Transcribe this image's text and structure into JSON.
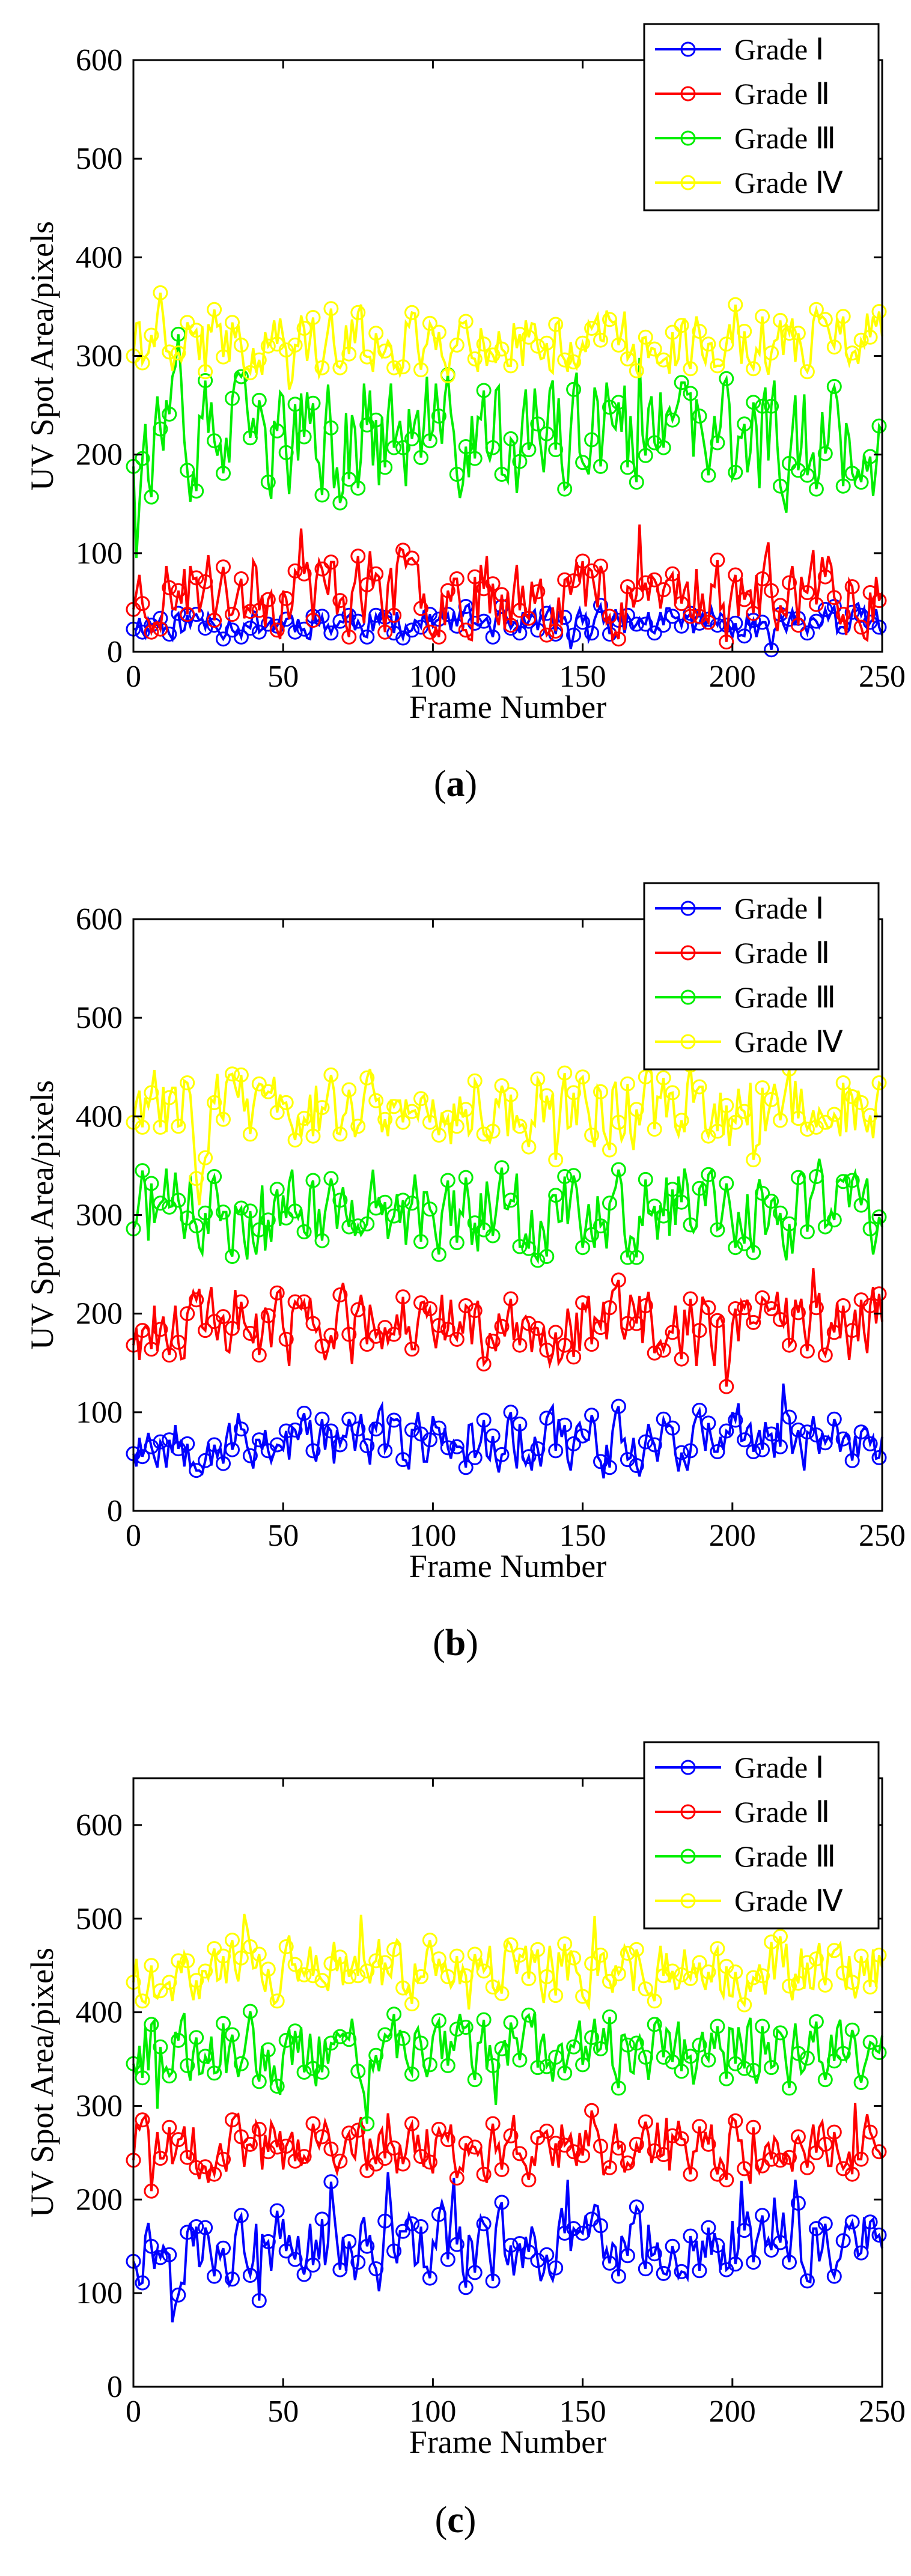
{
  "chart_data": [
    {
      "type": "line",
      "panel": "a",
      "caption_letter": "a",
      "xlabel": "Frame Number",
      "ylabel": "UV Spot Area/pixels",
      "xlim": [
        0,
        250
      ],
      "ylim": [
        0,
        600
      ],
      "xticks": [
        0,
        50,
        100,
        150,
        200,
        250
      ],
      "yticks": [
        0,
        100,
        200,
        300,
        400,
        500,
        600
      ],
      "legend_position": "top-right",
      "series": [
        {
          "name": "Grade Ⅰ",
          "color": "#0000ff",
          "seed": 11,
          "base": 30,
          "spread": 14,
          "min": 0,
          "max": 60
        },
        {
          "name": "Grade Ⅱ",
          "color": "#ff0000",
          "seed": 23,
          "base": 62,
          "spread": 38,
          "min": 10,
          "max": 180
        },
        {
          "name": "Grade Ⅲ",
          "color": "#00ee00",
          "seed": 37,
          "base": 215,
          "spread": 55,
          "min": 95,
          "max": 340
        },
        {
          "name": "Grade Ⅳ",
          "color": "#ffff00",
          "seed": 41,
          "base": 315,
          "spread": 30,
          "min": 245,
          "max": 405
        }
      ]
    },
    {
      "type": "line",
      "panel": "b",
      "caption_letter": "b",
      "xlabel": "Frame Number",
      "ylabel": "UV Spot Area/pixels",
      "xlim": [
        0,
        250
      ],
      "ylim": [
        0,
        600
      ],
      "xticks": [
        0,
        50,
        100,
        150,
        200,
        250
      ],
      "yticks": [
        0,
        100,
        200,
        300,
        400,
        500,
        600
      ],
      "legend_position": "top-right",
      "series": [
        {
          "name": "Grade Ⅰ",
          "color": "#0000ff",
          "seed": 53,
          "base": 72,
          "spread": 28,
          "min": 10,
          "max": 140
        },
        {
          "name": "Grade Ⅱ",
          "color": "#ff0000",
          "seed": 61,
          "base": 185,
          "spread": 35,
          "min": 85,
          "max": 270
        },
        {
          "name": "Grade Ⅲ",
          "color": "#00ee00",
          "seed": 71,
          "base": 305,
          "spread": 40,
          "min": 180,
          "max": 410
        },
        {
          "name": "Grade Ⅳ",
          "color": "#ffff00",
          "seed": 83,
          "base": 410,
          "spread": 35,
          "min": 310,
          "max": 500
        }
      ]
    },
    {
      "type": "line",
      "panel": "c",
      "caption_letter": "c",
      "xlabel": "Frame Number",
      "ylabel": "UV Spot Area/pixels",
      "xlim": [
        0,
        250
      ],
      "ylim": [
        0,
        650
      ],
      "xticks": [
        0,
        50,
        100,
        150,
        200,
        250
      ],
      "yticks": [
        0,
        100,
        200,
        300,
        400,
        500,
        600
      ],
      "legend_position": "top-right",
      "series": [
        {
          "name": "Grade Ⅰ",
          "color": "#0000ff",
          "seed": 97,
          "base": 150,
          "spread": 35,
          "min": 55,
          "max": 240
        },
        {
          "name": "Grade Ⅱ",
          "color": "#ff0000",
          "seed": 101,
          "base": 255,
          "spread": 30,
          "min": 160,
          "max": 330
        },
        {
          "name": "Grade Ⅲ",
          "color": "#00ee00",
          "seed": 113,
          "base": 360,
          "spread": 35,
          "min": 250,
          "max": 440
        },
        {
          "name": "Grade Ⅳ",
          "color": "#ffff00",
          "seed": 127,
          "base": 445,
          "spread": 30,
          "min": 350,
          "max": 540
        }
      ]
    }
  ],
  "n_frames": 250,
  "point_step": 3
}
